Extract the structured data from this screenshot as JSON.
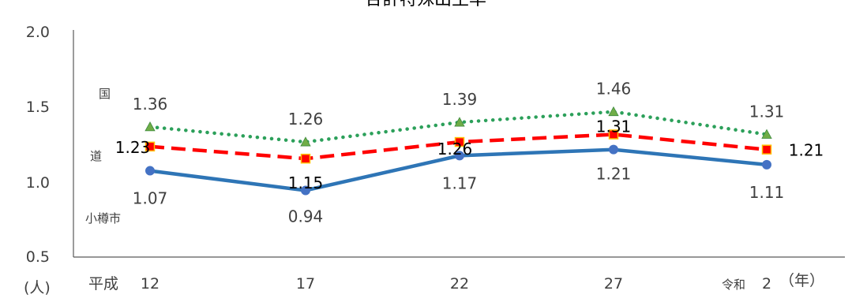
{
  "chart_data": {
    "type": "line",
    "title": "合計特殊出生率",
    "y_unit": "(人)",
    "x_unit": "（年）",
    "ylim": [
      0.5,
      2.0
    ],
    "y_ticks": [
      "0.5",
      "1.0",
      "1.5",
      "2.0"
    ],
    "x_era_labels": [
      "平成",
      "",
      "",
      "",
      "令和"
    ],
    "categories": [
      "12",
      "17",
      "22",
      "27",
      "2"
    ],
    "series": [
      {
        "name": "国",
        "color": "#2ca05a",
        "values": [
          1.36,
          1.26,
          1.39,
          1.46,
          1.31
        ],
        "labels": [
          "1.36",
          "1.26",
          "1.39",
          "1.46",
          "1.31"
        ]
      },
      {
        "name": "道",
        "color": "#ff0000",
        "values": [
          1.23,
          1.15,
          1.26,
          1.31,
          1.21
        ],
        "labels": [
          "1.23",
          "1.15",
          "1.26",
          "1.31",
          "1.21"
        ]
      },
      {
        "name": "小樽市",
        "color": "#2e75b6",
        "values": [
          1.07,
          0.94,
          1.17,
          1.21,
          1.11
        ],
        "labels": [
          "1.07",
          "0.94",
          "1.17",
          "1.21",
          "1.11"
        ]
      }
    ]
  }
}
